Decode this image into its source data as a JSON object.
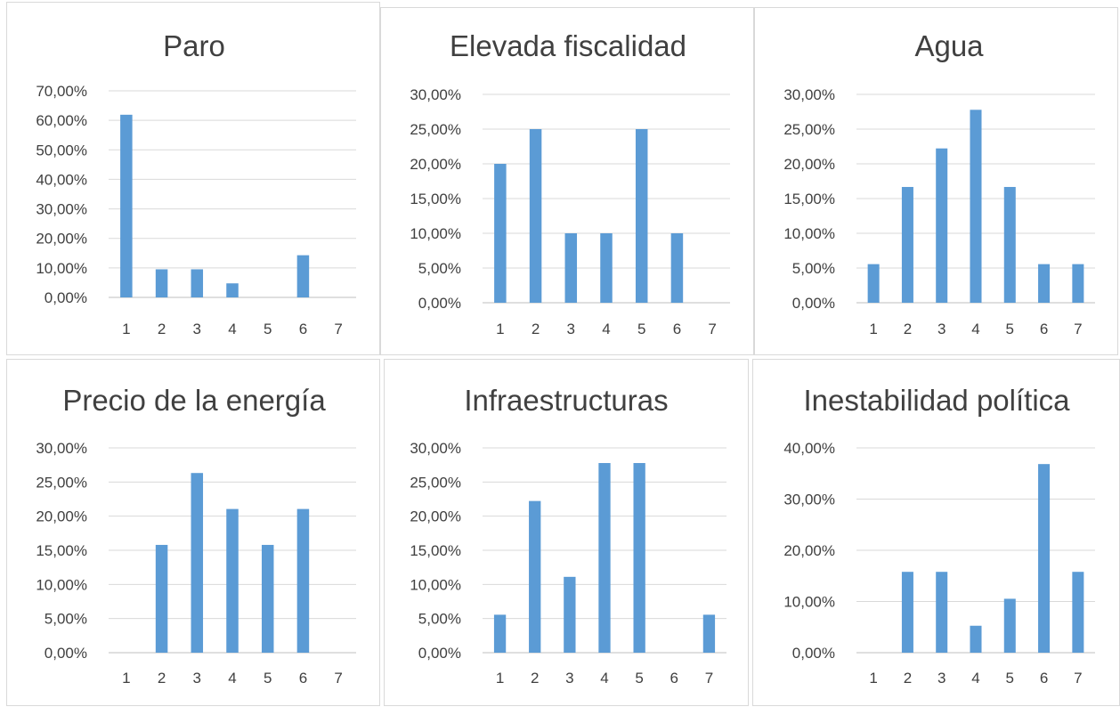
{
  "chart_data": [
    {
      "type": "bar",
      "title": "Paro",
      "categories": [
        "1",
        "2",
        "3",
        "4",
        "5",
        "6",
        "7"
      ],
      "values": [
        61.9,
        9.52,
        9.52,
        4.76,
        0,
        14.29,
        0
      ],
      "yticks": [
        "0,00%",
        "10,00%",
        "20,00%",
        "30,00%",
        "40,00%",
        "50,00%",
        "60,00%",
        "70,00%"
      ],
      "ylim": [
        0,
        70
      ],
      "legend": "none",
      "grid": true,
      "color": "#5b9bd5"
    },
    {
      "type": "bar",
      "title": "Elevada fiscalidad",
      "categories": [
        "1",
        "2",
        "3",
        "4",
        "5",
        "6",
        "7"
      ],
      "values": [
        20,
        25,
        10,
        10,
        25,
        10,
        0
      ],
      "yticks": [
        "0,00%",
        "5,00%",
        "10,00%",
        "15,00%",
        "20,00%",
        "25,00%",
        "30,00%"
      ],
      "ylim": [
        0,
        30
      ],
      "legend": "none",
      "grid": true,
      "color": "#5b9bd5"
    },
    {
      "type": "bar",
      "title": "Agua",
      "categories": [
        "1",
        "2",
        "3",
        "4",
        "5",
        "6",
        "7"
      ],
      "values": [
        5.56,
        16.67,
        22.22,
        27.78,
        16.67,
        5.56,
        5.56
      ],
      "yticks": [
        "0,00%",
        "5,00%",
        "10,00%",
        "15,00%",
        "20,00%",
        "25,00%",
        "30,00%"
      ],
      "ylim": [
        0,
        30
      ],
      "legend": "none",
      "grid": true,
      "color": "#5b9bd5"
    },
    {
      "type": "bar",
      "title": "Precio de la energía",
      "categories": [
        "1",
        "2",
        "3",
        "4",
        "5",
        "6",
        "7"
      ],
      "values": [
        0,
        15.79,
        26.32,
        21.05,
        15.79,
        21.05,
        0
      ],
      "yticks": [
        "0,00%",
        "5,00%",
        "10,00%",
        "15,00%",
        "20,00%",
        "25,00%",
        "30,00%"
      ],
      "ylim": [
        0,
        30
      ],
      "legend": "none",
      "grid": true,
      "color": "#5b9bd5"
    },
    {
      "type": "bar",
      "title": "Infraestructuras",
      "categories": [
        "1",
        "2",
        "3",
        "4",
        "5",
        "6",
        "7"
      ],
      "values": [
        5.56,
        22.22,
        11.11,
        27.78,
        27.78,
        0,
        5.56
      ],
      "yticks": [
        "0,00%",
        "5,00%",
        "10,00%",
        "15,00%",
        "20,00%",
        "25,00%",
        "30,00%"
      ],
      "ylim": [
        0,
        30
      ],
      "legend": "none",
      "grid": true,
      "color": "#5b9bd5"
    },
    {
      "type": "bar",
      "title": "Inestabilidad política",
      "categories": [
        "1",
        "2",
        "3",
        "4",
        "5",
        "6",
        "7"
      ],
      "values": [
        0,
        15.79,
        15.79,
        5.26,
        10.53,
        36.84,
        15.79
      ],
      "yticks": [
        "0,00%",
        "10,00%",
        "20,00%",
        "30,00%",
        "40,00%"
      ],
      "ylim": [
        0,
        40
      ],
      "legend": "none",
      "grid": true,
      "color": "#5b9bd5"
    }
  ]
}
